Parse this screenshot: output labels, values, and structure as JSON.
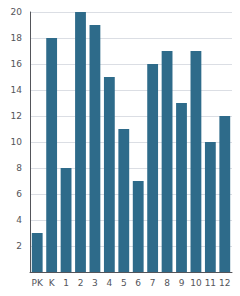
{
  "chart_data": {
    "type": "bar",
    "categories": [
      "PK",
      "K",
      "1",
      "2",
      "3",
      "4",
      "5",
      "6",
      "7",
      "8",
      "9",
      "10",
      "11",
      "12"
    ],
    "values": [
      3,
      18,
      8,
      20,
      19,
      15,
      11,
      7,
      16,
      17,
      13,
      17,
      10,
      12
    ],
    "color": "#2e6b8a",
    "ylim": [
      0,
      20
    ],
    "yticks": [
      2,
      4,
      6,
      8,
      10,
      12,
      14,
      16,
      18,
      20
    ],
    "grid": true
  }
}
